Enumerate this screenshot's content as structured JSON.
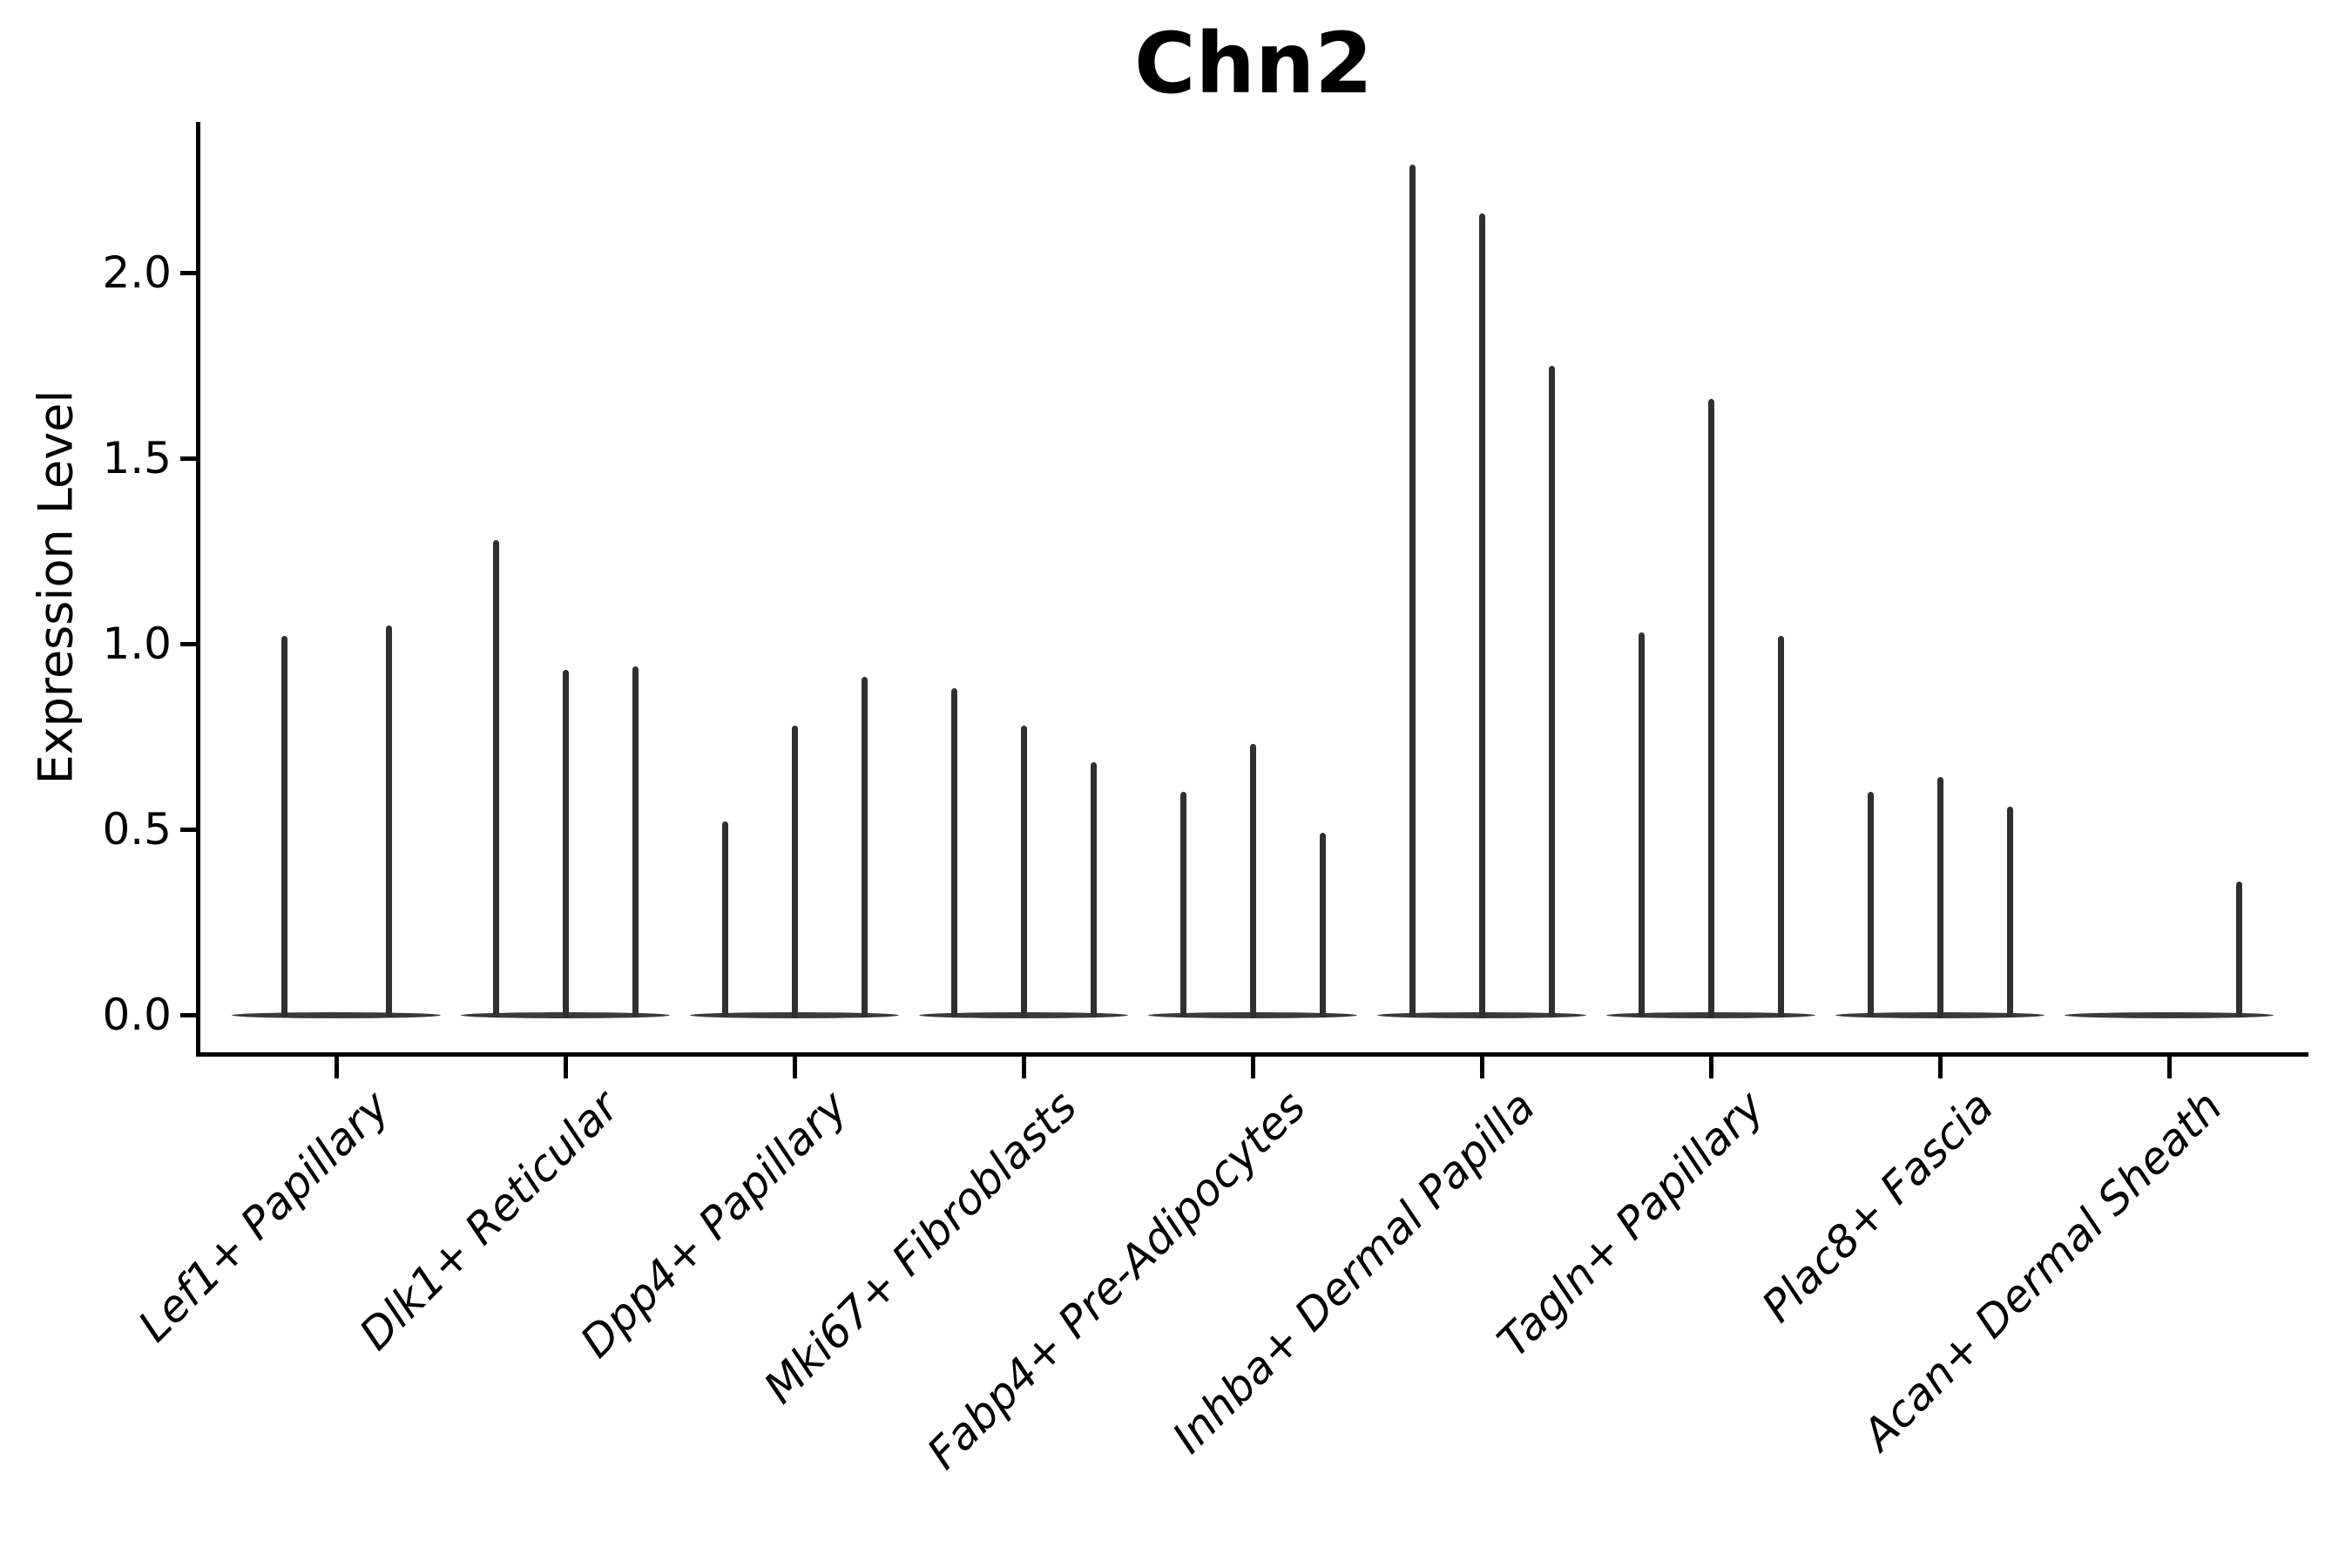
{
  "figure": {
    "background": "#ffffff"
  },
  "chart_data": {
    "type": "violin",
    "title": "Chn2",
    "xlabel": "",
    "ylabel": "Expression Level",
    "ylim": [
      -0.1,
      2.42
    ],
    "grid": false,
    "legend": "none",
    "yticks": [
      {
        "value": 0.0,
        "label": "0.0"
      },
      {
        "value": 0.5,
        "label": "0.5"
      },
      {
        "value": 1.0,
        "label": "1.0"
      },
      {
        "value": 1.5,
        "label": "1.5"
      },
      {
        "value": 2.0,
        "label": "2.0"
      }
    ],
    "categories": [
      "Lef1+ Papillary",
      "Dlk1+ Reticular",
      "Dpp4+ Papillary",
      "Mki67+ Fibroblasts",
      "Fabp4+ Pre-Adipocytes",
      "Inhba+ Dermal Papilla",
      "Tagln+ Papillary",
      "Plac8+ Fascia",
      "Acan+ Dermal Sheath"
    ],
    "groups": [
      {
        "category": "Lef1+ Papillary",
        "spike_heights": [
          1.02,
          1.05
        ]
      },
      {
        "category": "Dlk1+ Reticular",
        "spike_heights": [
          1.28,
          0.93,
          0.94
        ]
      },
      {
        "category": "Dpp4+ Papillary",
        "spike_heights": [
          0.52,
          0.78,
          0.91
        ]
      },
      {
        "category": "Mki67+ Fibroblasts",
        "spike_heights": [
          0.88,
          0.78,
          0.68
        ]
      },
      {
        "category": "Fabp4+ Pre-Adipocytes",
        "spike_heights": [
          0.6,
          0.73,
          0.49
        ]
      },
      {
        "category": "Inhba+ Dermal Papilla",
        "spike_heights": [
          2.29,
          2.16,
          1.75
        ]
      },
      {
        "category": "Tagln+ Papillary",
        "spike_heights": [
          1.03,
          1.66,
          1.02
        ]
      },
      {
        "category": "Plac8+ Fascia",
        "spike_heights": [
          0.6,
          0.64,
          0.56
        ]
      },
      {
        "category": "Acan+ Dermal Sheath",
        "spike_heights": [
          0,
          0,
          0.36
        ]
      }
    ],
    "colors": {
      "spike": "#303030",
      "baseline": "#3a3a3a",
      "axis": "#000000",
      "text": "#000000"
    }
  }
}
